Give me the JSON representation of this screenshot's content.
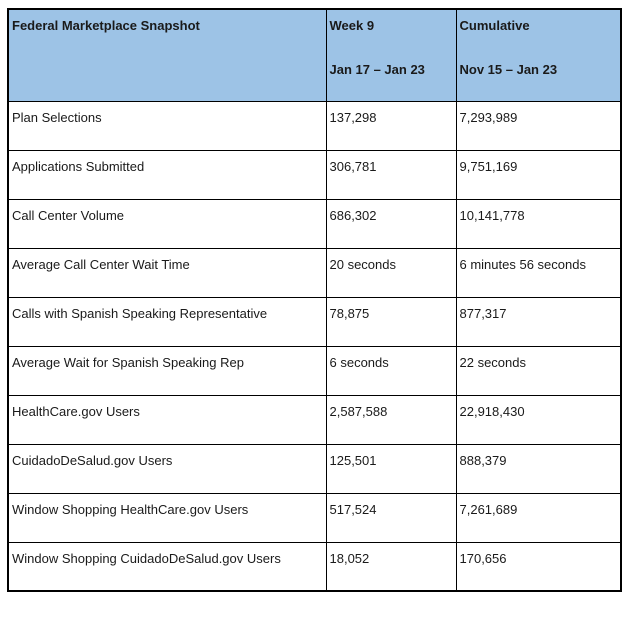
{
  "table": {
    "header": {
      "title": "Federal Marketplace Snapshot",
      "week_label": "Week 9",
      "week_range": "Jan 17 – Jan 23",
      "cumulative_label": "Cumulative",
      "cumulative_range": "Nov 15 – Jan 23"
    },
    "rows": [
      {
        "label": "Plan Selections",
        "week": "137,298",
        "cumulative": "7,293,989"
      },
      {
        "label": "Applications Submitted",
        "week": "306,781",
        "cumulative": "9,751,169"
      },
      {
        "label": "Call Center Volume",
        "week": "686,302",
        "cumulative": "10,141,778"
      },
      {
        "label": "Average Call Center Wait Time",
        "week": "20 seconds",
        "cumulative": "6 minutes 56 seconds"
      },
      {
        "label": "Calls with Spanish Speaking Representative",
        "week": "78,875",
        "cumulative": "877,317"
      },
      {
        "label": "Average Wait for Spanish Speaking Rep",
        "week": "6 seconds",
        "cumulative": "22 seconds"
      },
      {
        "label": "HealthCare.gov Users",
        "week": "2,587,588",
        "cumulative": "22,918,430"
      },
      {
        "label": "CuidadoDeSalud.gov Users",
        "week": "125,501",
        "cumulative": "888,379"
      },
      {
        "label": "Window Shopping HealthCare.gov Users",
        "week": "517,524",
        "cumulative": "7,261,689"
      },
      {
        "label": "Window Shopping CuidadoDeSalud.gov Users",
        "week": "18,052",
        "cumulative": "170,656"
      }
    ],
    "colors": {
      "header_bg": "#9DC3E6",
      "border": "#000000",
      "text": "#1A1A1A"
    }
  }
}
